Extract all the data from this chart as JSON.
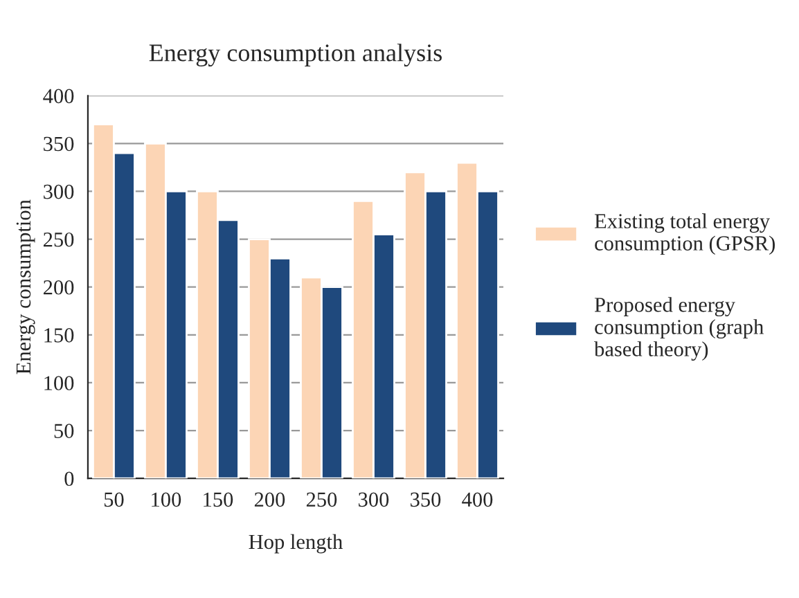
{
  "chart_data": {
    "type": "bar",
    "title": "Energy consumption analysis",
    "xlabel": "Hop length",
    "ylabel": "Energy consumption",
    "categories": [
      "50",
      "100",
      "150",
      "200",
      "250",
      "300",
      "350",
      "400"
    ],
    "series": [
      {
        "name": "Existing total energy consumption (GPSR)",
        "color": "#fcd5b5",
        "values": [
          370,
          350,
          300,
          250,
          210,
          290,
          320,
          330
        ]
      },
      {
        "name": "Proposed energy consumption (graph based theory)",
        "color": "#1f497d",
        "values": [
          340,
          300,
          270,
          230,
          200,
          255,
          300,
          300
        ]
      }
    ],
    "ylim": [
      0,
      400
    ],
    "yticks": [
      0,
      50,
      100,
      150,
      200,
      250,
      300,
      350,
      400
    ],
    "grid": "y",
    "legend": "right"
  }
}
